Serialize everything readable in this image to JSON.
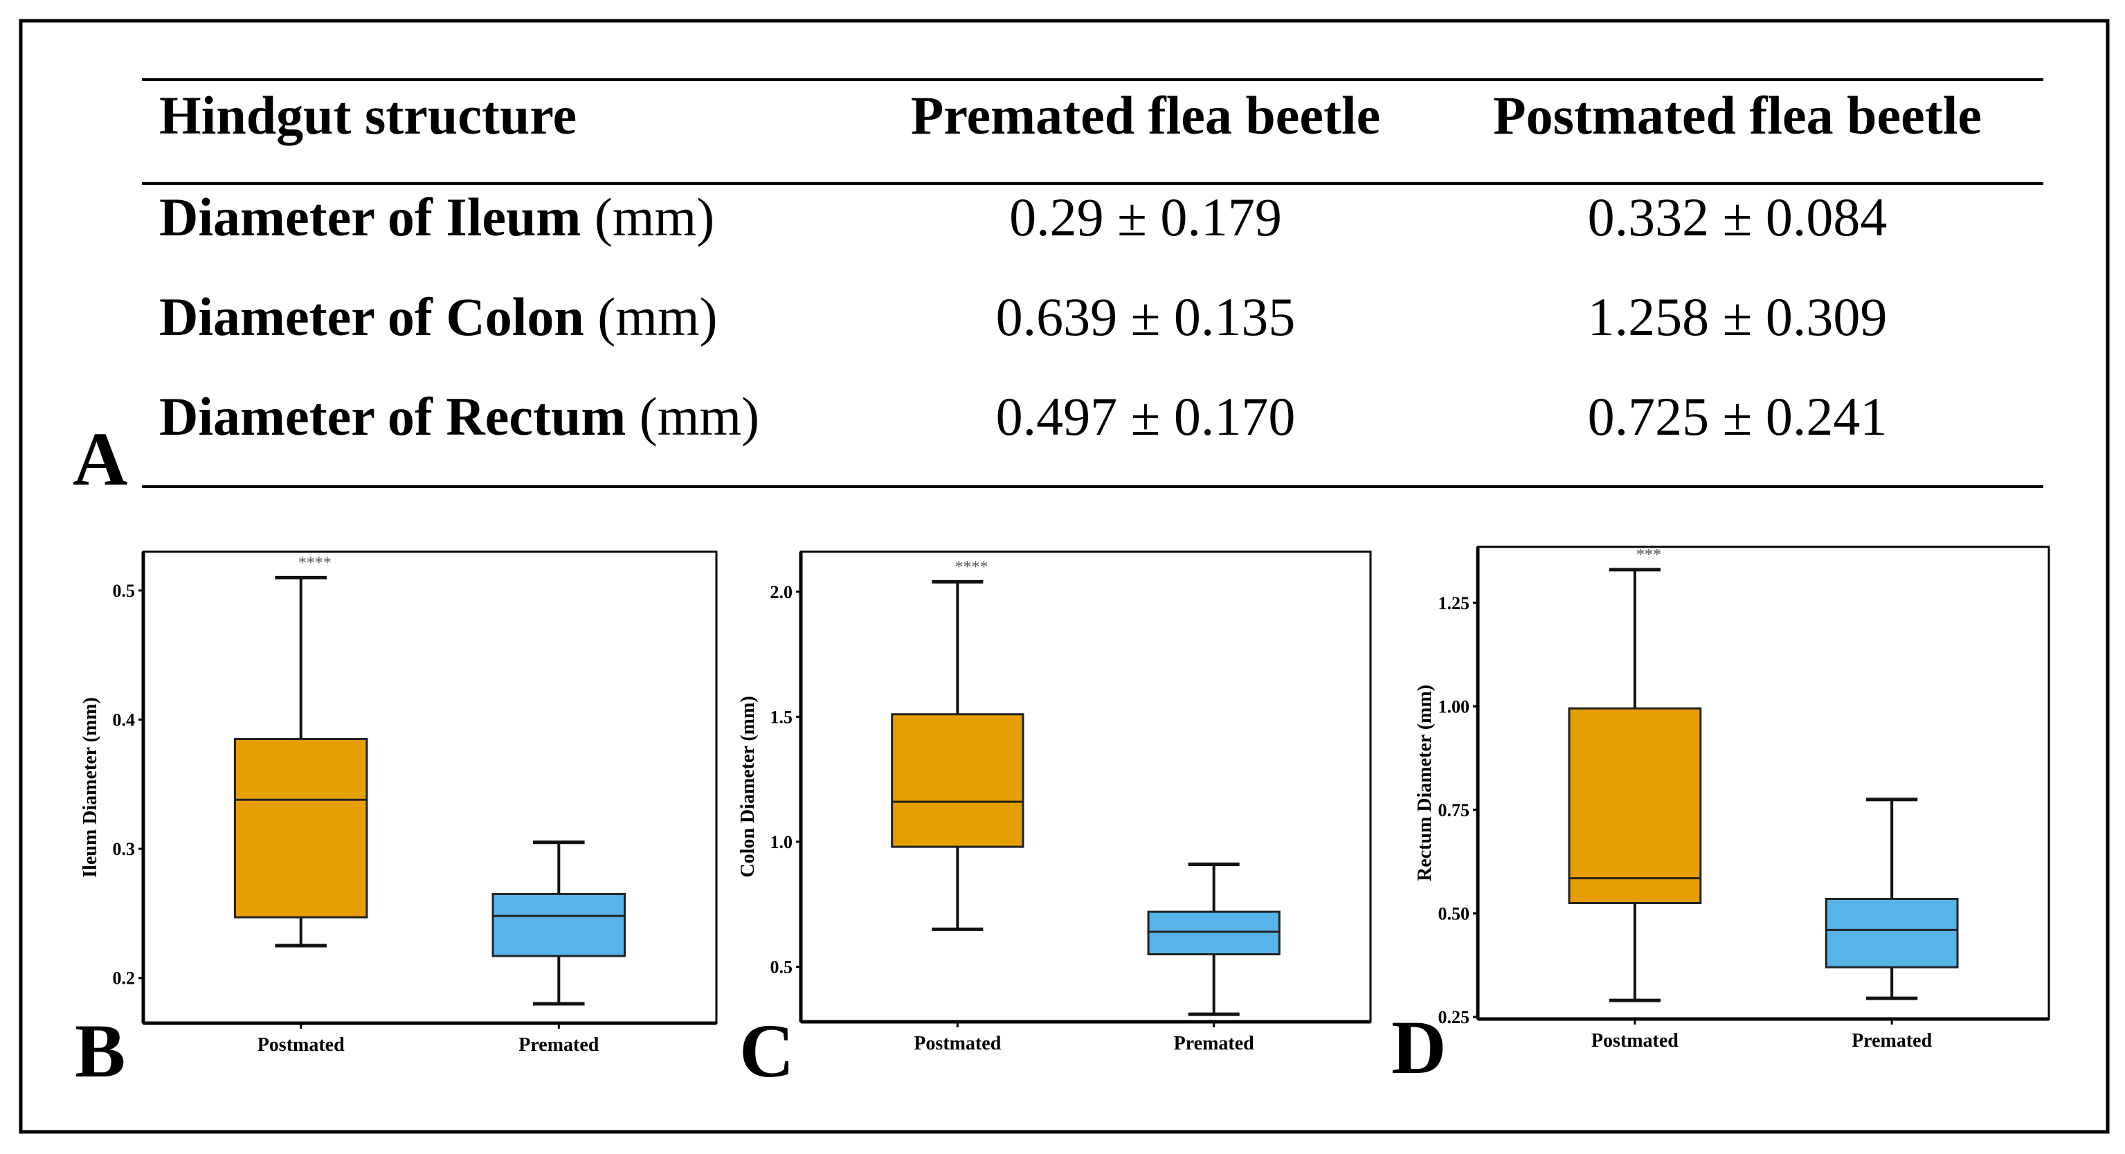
{
  "table": {
    "headers": [
      "Hindgut structure",
      "Premated flea beetle",
      "Postmated flea beetle"
    ],
    "rows": [
      {
        "label_bold": "Diameter of Ileum",
        "unit": "(mm)",
        "premated": "0.29 ± 0.179",
        "postmated": "0.332 ± 0.084"
      },
      {
        "label_bold": "Diameter of Colon",
        "unit": "(mm)",
        "premated": "0.639 ± 0.135",
        "postmated": "1.258 ± 0.309"
      },
      {
        "label_bold": "Diameter of Rectum",
        "unit": "(mm)",
        "premated": "0.497 ± 0.170",
        "postmated": "0.725 ± 0.241"
      }
    ]
  },
  "panel_labels": {
    "a": "A",
    "b": "B",
    "c": "C",
    "d": "D"
  },
  "colors": {
    "postmated": "#E69F00",
    "premated": "#56B4E9"
  },
  "chart_data": [
    {
      "type": "box",
      "panel": "B",
      "ylabel": "Ileum Diameter (mm)",
      "categories": [
        "Postmated",
        "Premated"
      ],
      "ylim": [
        0.165,
        0.53
      ],
      "yticks": [
        0.2,
        0.3,
        0.4,
        0.5
      ],
      "ytick_labels": [
        "0.2",
        "0.3",
        "0.4",
        "0.5"
      ],
      "boxes": [
        {
          "name": "Postmated",
          "whisker_low": 0.225,
          "q1": 0.247,
          "median": 0.338,
          "q3": 0.385,
          "whisker_high": 0.51
        },
        {
          "name": "Premated",
          "whisker_low": 0.18,
          "q1": 0.217,
          "median": 0.248,
          "q3": 0.265,
          "whisker_high": 0.305
        }
      ],
      "significance": "****"
    },
    {
      "type": "box",
      "panel": "C",
      "ylabel": "Colon Diameter (mm)",
      "categories": [
        "Postmated",
        "Premated"
      ],
      "ylim": [
        0.28,
        2.16
      ],
      "yticks": [
        0.5,
        1.0,
        1.5,
        2.0
      ],
      "ytick_labels": [
        "0.5",
        "1.0",
        "1.5",
        "2.0"
      ],
      "boxes": [
        {
          "name": "Postmated",
          "whisker_low": 0.65,
          "q1": 0.98,
          "median": 1.16,
          "q3": 1.51,
          "whisker_high": 2.04
        },
        {
          "name": "Premated",
          "whisker_low": 0.31,
          "q1": 0.55,
          "median": 0.64,
          "q3": 0.72,
          "whisker_high": 0.91
        }
      ],
      "significance": "****"
    },
    {
      "type": "box",
      "panel": "D",
      "ylabel": "Rectum Diameter (mm)",
      "categories": [
        "Postmated",
        "Premated"
      ],
      "ylim": [
        0.245,
        1.385
      ],
      "yticks": [
        0.25,
        0.5,
        0.75,
        1.0,
        1.25
      ],
      "ytick_labels": [
        "0.25",
        "0.50",
        "0.75",
        "1.00",
        "1.25"
      ],
      "boxes": [
        {
          "name": "Postmated",
          "whisker_low": 0.29,
          "q1": 0.525,
          "median": 0.585,
          "q3": 0.995,
          "whisker_high": 1.33
        },
        {
          "name": "Premated",
          "whisker_low": 0.295,
          "q1": 0.37,
          "median": 0.46,
          "q3": 0.535,
          "whisker_high": 0.775
        }
      ],
      "significance": "***"
    }
  ]
}
